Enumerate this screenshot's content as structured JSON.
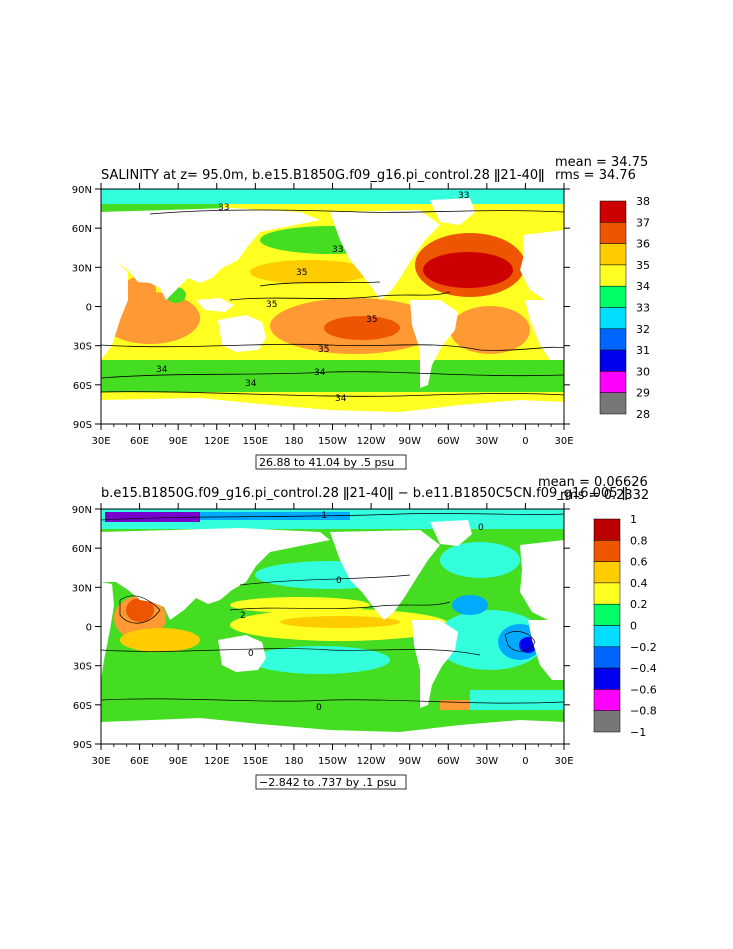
{
  "chart_data": [
    {
      "type": "heatmap",
      "title": "SALINITY at z=  95.0m, b.e15.B1850G.f09_g16.pi_control.28 ǁ21-40ǁ",
      "stats": {
        "mean": "mean = 34.75",
        "rms": "rms = 34.76"
      },
      "subtitle_box": "26.88 to 41.04 by .5 psu",
      "x_ticks": [
        "30E",
        "60E",
        "90E",
        "120E",
        "150E",
        "180",
        "150W",
        "120W",
        "90W",
        "60W",
        "30W",
        "0",
        "30E"
      ],
      "y_ticks": [
        "90N",
        "60N",
        "30N",
        "0",
        "30S",
        "60S",
        "90S"
      ],
      "xlim": [
        "30E",
        "30E"
      ],
      "ylim": [
        "90S",
        "90N"
      ],
      "colorbar": {
        "labels": [
          "38",
          "37",
          "36",
          "35",
          "34",
          "33",
          "32",
          "31",
          "30",
          "29",
          "28"
        ],
        "colors": [
          "#cc0000",
          "#ee1100",
          "#ee5500",
          "#ff9933",
          "#ffcc00",
          "#ffff22",
          "#44dd22",
          "#00ff66",
          "#33ffdd",
          "#00ddff",
          "#00aaff",
          "#0066ff",
          "#0000ee",
          "#7700cc",
          "#ff00ff",
          "#cccccc",
          "#777777"
        ]
      },
      "contour_labels": [
        "33",
        "33",
        "33",
        "35",
        "35",
        "35",
        "35",
        "34",
        "34",
        "34",
        "34"
      ]
    },
    {
      "type": "heatmap",
      "title": "b.e15.B1850G.f09_g16.pi_control.28 ǁ21-40ǁ − b.e11.B1850C5CN.f09_g16.005 ǁ",
      "stats": {
        "mean": "mean = 0.06626",
        "rms": "rms = 0.2332"
      },
      "subtitle_box": "−2.842 to .737 by .1 psu",
      "x_ticks": [
        "30E",
        "60E",
        "90E",
        "120E",
        "150E",
        "180",
        "150W",
        "120W",
        "90W",
        "60W",
        "30W",
        "0",
        "30E"
      ],
      "y_ticks": [
        "90N",
        "60N",
        "30N",
        "0",
        "30S",
        "60S",
        "90S"
      ],
      "xlim": [
        "30E",
        "30E"
      ],
      "ylim": [
        "90S",
        "90N"
      ],
      "colorbar": {
        "labels": [
          "1",
          "0.8",
          "0.6",
          "0.4",
          "0.2",
          "0",
          "−0.2",
          "−0.4",
          "−0.6",
          "−0.8",
          "−1"
        ],
        "colors": [
          "#bb0000",
          "#ee1100",
          "#ee5500",
          "#ff9933",
          "#ffcc00",
          "#ffff22",
          "#44dd22",
          "#00ff66",
          "#33ffdd",
          "#00ddff",
          "#00aaff",
          "#0066ff",
          "#0000ee",
          "#7700cc",
          "#ff00ff",
          "#cccccc",
          "#777777"
        ]
      },
      "contour_labels": [
        "0",
        "0",
        "0",
        "0",
        "2",
        "-1"
      ]
    }
  ]
}
